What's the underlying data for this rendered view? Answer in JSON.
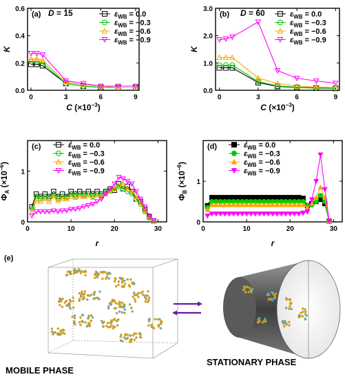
{
  "chart_data": [
    {
      "panel": "(a)",
      "type": "line",
      "annotation": "D = 15",
      "annotation_var": "D",
      "annotation_val": " = 15",
      "xlabel": "C (×10−3)",
      "xlabel_var": "C",
      "xlabel_unit": " (×10",
      "xlabel_exp": "−3",
      "ylabel": "K",
      "xlim": [
        -0.3,
        9.3
      ],
      "ylim": [
        0,
        0.6
      ],
      "xticks": [
        0,
        3,
        6,
        9
      ],
      "yticks": [
        0.0,
        0.2,
        0.4,
        0.6
      ],
      "ytick_labels": [
        "0.0",
        "0.2",
        "0.4",
        "0.6"
      ],
      "legend_position": "top-right",
      "x": [
        0,
        0.5,
        1,
        3,
        4.5,
        6,
        7.5,
        9
      ],
      "series": [
        {
          "name": "εWB = 0.0",
          "wb": "0.0",
          "color": "#000000",
          "marker": "square",
          "filled": false,
          "values": [
            0.19,
            0.19,
            0.18,
            0.05,
            0.03,
            0.02,
            0.02,
            0.02
          ]
        },
        {
          "name": "εWB = −0.3",
          "wb": "−0.3",
          "color": "#00cc00",
          "marker": "circle",
          "filled": false,
          "values": [
            0.21,
            0.21,
            0.2,
            0.05,
            0.03,
            0.02,
            0.02,
            0.02
          ]
        },
        {
          "name": "εWB = −0.6",
          "wb": "−0.6",
          "color": "#ffa500",
          "marker": "triangle-up",
          "filled": false,
          "values": [
            0.23,
            0.23,
            0.22,
            0.06,
            0.04,
            0.03,
            0.02,
            0.02
          ]
        },
        {
          "name": "εWB = −0.9",
          "wb": "−0.9",
          "color": "#ff00ff",
          "marker": "triangle-down",
          "filled": false,
          "values": [
            0.27,
            0.27,
            0.26,
            0.07,
            0.05,
            0.03,
            0.03,
            0.03
          ]
        }
      ]
    },
    {
      "panel": "(b)",
      "type": "line",
      "annotation": "D = 60",
      "annotation_var": "D",
      "annotation_val": " = 60",
      "xlabel": "C (×10−3)",
      "xlabel_var": "C",
      "xlabel_unit": " (×10",
      "xlabel_exp": "−3",
      "ylabel": "K",
      "xlim": [
        -0.3,
        9.3
      ],
      "ylim": [
        0,
        3.0
      ],
      "xticks": [
        0,
        3,
        6,
        9
      ],
      "yticks": [
        0.0,
        1.0,
        2.0,
        3.0
      ],
      "ytick_labels": [
        "0.0",
        "1.0",
        "2.0",
        "3.0"
      ],
      "legend_position": "top-right",
      "x": [
        0,
        0.5,
        1,
        3,
        4.5,
        6,
        7.5,
        9
      ],
      "series": [
        {
          "name": "εWB = 0.0",
          "wb": "0.0",
          "color": "#000000",
          "marker": "square",
          "filled": false,
          "values": [
            0.82,
            0.82,
            0.82,
            0.28,
            0.14,
            0.1,
            0.08,
            0.07
          ]
        },
        {
          "name": "εWB = −0.3",
          "wb": "−0.3",
          "color": "#00cc00",
          "marker": "circle",
          "filled": false,
          "values": [
            0.92,
            0.92,
            0.92,
            0.32,
            0.16,
            0.11,
            0.09,
            0.08
          ]
        },
        {
          "name": "εWB = −0.6",
          "wb": "−0.6",
          "color": "#ffa500",
          "marker": "triangle-up",
          "filled": false,
          "values": [
            1.2,
            1.2,
            1.2,
            0.45,
            0.25,
            0.15,
            0.12,
            0.1
          ]
        },
        {
          "name": "εWB = −0.9",
          "wb": "−0.9",
          "color": "#ff00ff",
          "marker": "triangle-down",
          "filled": false,
          "values": [
            1.85,
            1.88,
            1.95,
            2.5,
            0.72,
            0.44,
            0.34,
            0.26
          ]
        }
      ]
    },
    {
      "panel": "(c)",
      "type": "line",
      "xlabel": "r",
      "xlabel_var": "r",
      "ylabel": "ΦA (×10−6)",
      "ylabel_sym": "Φ",
      "ylabel_sub": "A",
      "ylabel_unit": " (×10",
      "ylabel_exp": "−6",
      "xlim": [
        0,
        32
      ],
      "ylim": [
        0,
        1.6
      ],
      "xticks": [
        0,
        10,
        20,
        30
      ],
      "yticks": [
        0,
        1
      ],
      "ytick_labels": [
        "0",
        "1"
      ],
      "legend_position": "top-left",
      "x": [
        1,
        2,
        3,
        4,
        5,
        6,
        7,
        8,
        9,
        10,
        11,
        12,
        13,
        14,
        15,
        16,
        17,
        18,
        19,
        20,
        21,
        22,
        23,
        24,
        25,
        26,
        27,
        28,
        29
      ],
      "series": [
        {
          "name": "εWB = 0.0",
          "wb": "0.0",
          "color": "#000000",
          "marker": "square",
          "filled": false,
          "values": [
            0.3,
            0.55,
            0.5,
            0.55,
            0.5,
            0.6,
            0.5,
            0.55,
            0.5,
            0.6,
            0.55,
            0.6,
            0.55,
            0.6,
            0.55,
            0.6,
            0.55,
            0.6,
            0.65,
            0.62,
            0.75,
            0.65,
            0.7,
            0.6,
            0.45,
            0.4,
            0.25,
            0.1,
            0.02
          ]
        },
        {
          "name": "εWB = −0.3",
          "wb": "−0.3",
          "color": "#00cc00",
          "marker": "circle",
          "filled": false,
          "values": [
            0.25,
            0.5,
            0.45,
            0.5,
            0.45,
            0.55,
            0.45,
            0.5,
            0.48,
            0.55,
            0.5,
            0.55,
            0.52,
            0.55,
            0.5,
            0.55,
            0.52,
            0.58,
            0.62,
            0.65,
            0.7,
            0.65,
            0.6,
            0.55,
            0.45,
            0.35,
            0.2,
            0.08,
            0.02
          ]
        },
        {
          "name": "εWB = −0.6",
          "wb": "−0.6",
          "color": "#ffa500",
          "marker": "triangle-up",
          "filled": false,
          "values": [
            0.2,
            0.42,
            0.4,
            0.45,
            0.4,
            0.5,
            0.42,
            0.45,
            0.45,
            0.5,
            0.48,
            0.5,
            0.5,
            0.52,
            0.48,
            0.52,
            0.5,
            0.55,
            0.6,
            0.65,
            0.72,
            0.75,
            0.65,
            0.6,
            0.5,
            0.38,
            0.22,
            0.08,
            0.02
          ]
        },
        {
          "name": "εWB = −0.9",
          "wb": "−0.9",
          "color": "#ff00ff",
          "marker": "triangle-down",
          "filled": false,
          "values": [
            0.12,
            0.2,
            0.2,
            0.2,
            0.2,
            0.22,
            0.2,
            0.22,
            0.22,
            0.25,
            0.25,
            0.27,
            0.3,
            0.32,
            0.35,
            0.4,
            0.45,
            0.55,
            0.65,
            0.75,
            0.88,
            0.85,
            0.8,
            0.75,
            0.6,
            0.45,
            0.3,
            0.12,
            0.03
          ]
        }
      ]
    },
    {
      "panel": "(d)",
      "type": "line",
      "xlabel": "r",
      "xlabel_var": "r",
      "ylabel": "ΦB (×10−6)",
      "ylabel_sym": "Φ",
      "ylabel_sub": "B",
      "ylabel_unit": " (×10",
      "ylabel_exp": "−6",
      "xlim": [
        0,
        32
      ],
      "ylim": [
        0,
        2.0
      ],
      "xticks": [
        0,
        10,
        20,
        30
      ],
      "yticks": [
        0,
        1
      ],
      "ytick_labels": [
        "0",
        "1"
      ],
      "legend_position": "top-left",
      "x": [
        1,
        2,
        3,
        4,
        5,
        6,
        7,
        8,
        9,
        10,
        11,
        12,
        13,
        14,
        15,
        16,
        17,
        18,
        19,
        20,
        21,
        22,
        23,
        24,
        25,
        26,
        27,
        28,
        29
      ],
      "series": [
        {
          "name": "εWB = 0.0",
          "wb": "0.0",
          "color": "#000000",
          "marker": "square",
          "filled": true,
          "values": [
            0.4,
            0.6,
            0.6,
            0.6,
            0.6,
            0.6,
            0.6,
            0.6,
            0.6,
            0.6,
            0.6,
            0.6,
            0.6,
            0.6,
            0.6,
            0.6,
            0.6,
            0.6,
            0.6,
            0.6,
            0.6,
            0.6,
            0.58,
            0.4,
            0.45,
            0.5,
            0.55,
            0.45,
            0.02
          ]
        },
        {
          "name": "εWB = −0.3",
          "wb": "−0.3",
          "color": "#00cc00",
          "marker": "circle",
          "filled": true,
          "values": [
            0.35,
            0.5,
            0.5,
            0.5,
            0.5,
            0.5,
            0.5,
            0.5,
            0.5,
            0.5,
            0.5,
            0.5,
            0.5,
            0.5,
            0.5,
            0.5,
            0.5,
            0.5,
            0.5,
            0.5,
            0.5,
            0.5,
            0.5,
            0.4,
            0.42,
            0.5,
            0.65,
            0.5,
            0.02
          ]
        },
        {
          "name": "εWB = −0.6",
          "wb": "−0.6",
          "color": "#ffa500",
          "marker": "triangle-up",
          "filled": true,
          "values": [
            0.3,
            0.42,
            0.42,
            0.42,
            0.42,
            0.42,
            0.42,
            0.42,
            0.42,
            0.42,
            0.42,
            0.42,
            0.42,
            0.42,
            0.42,
            0.42,
            0.42,
            0.42,
            0.42,
            0.42,
            0.42,
            0.42,
            0.42,
            0.35,
            0.45,
            0.6,
            0.85,
            0.6,
            0.02
          ]
        },
        {
          "name": "εWB = −0.9",
          "wb": "−0.9",
          "color": "#ff00ff",
          "marker": "triangle-down",
          "filled": true,
          "values": [
            0.15,
            0.2,
            0.2,
            0.2,
            0.2,
            0.2,
            0.2,
            0.2,
            0.2,
            0.2,
            0.2,
            0.2,
            0.2,
            0.2,
            0.2,
            0.2,
            0.2,
            0.2,
            0.2,
            0.2,
            0.2,
            0.2,
            0.22,
            0.25,
            0.55,
            1.0,
            1.65,
            0.8,
            0.02
          ]
        }
      ]
    }
  ],
  "schematic": {
    "panel_label": "(e)",
    "mobile_label": "MOBILE PHASE",
    "stationary_label": "STATIONARY PHASE",
    "colors": {
      "cluster_a": "#d9a520",
      "cluster_b": "#5fb3c8",
      "arrow": "#6a1b9a",
      "cylinder": "#505050"
    }
  }
}
